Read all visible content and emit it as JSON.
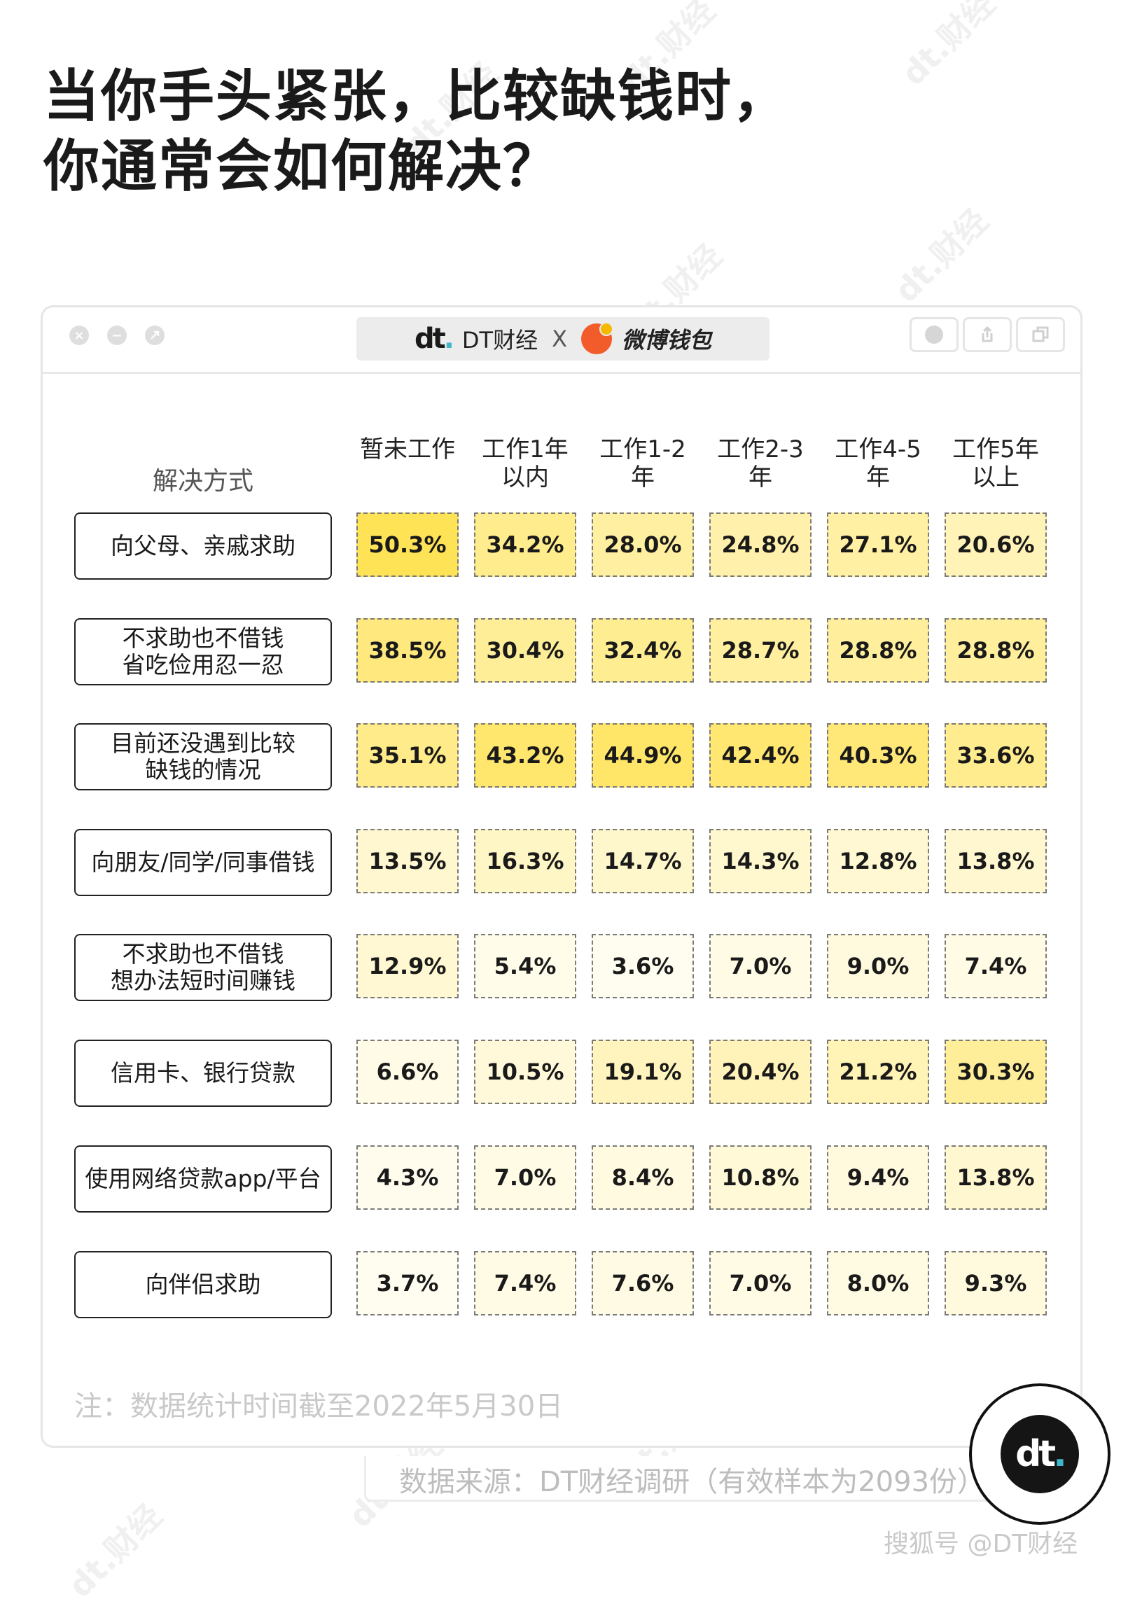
{
  "watermark": "dt.财经",
  "title_lines": [
    "当你手头紧张，比较缺钱时，",
    "你通常会如何解决？"
  ],
  "window": {
    "brand_dt": "DT财经",
    "brand_x": "X",
    "brand_weibo": "微博钱包"
  },
  "logo_text": "dt",
  "chart_data": {
    "type": "table",
    "title": "当你手头紧张，比较缺钱时，你通常会如何解决？",
    "row_header": "解决方式",
    "columns": [
      "暂未工作",
      "工作1年\n以内",
      "工作1-2年",
      "工作2-3年",
      "工作4-5年",
      "工作5年\n以上"
    ],
    "rows": [
      {
        "label": "向父母、亲戚求助",
        "values": [
          50.3,
          34.2,
          28.0,
          24.8,
          27.1,
          20.6
        ],
        "display": [
          "50.3%",
          "34.2%",
          "28.0%",
          "24.8%",
          "27.1%",
          "20.6%"
        ]
      },
      {
        "label": "不求助也不借钱\n省吃俭用忍一忍",
        "values": [
          38.5,
          30.4,
          32.4,
          28.7,
          28.8,
          28.8
        ],
        "display": [
          "38.5%",
          "30.4%",
          "32.4%",
          "28.7%",
          "28.8%",
          "28.8%"
        ]
      },
      {
        "label": "目前还没遇到比较\n缺钱的情况",
        "values": [
          35.1,
          43.2,
          44.9,
          42.4,
          40.3,
          33.6
        ],
        "display": [
          "35.1%",
          "43.2%",
          "44.9%",
          "42.4%",
          "40.3%",
          "33.6%"
        ]
      },
      {
        "label": "向朋友/同学/同事借钱",
        "values": [
          13.5,
          16.3,
          14.7,
          14.3,
          12.8,
          13.8
        ],
        "display": [
          "13.5%",
          "16.3%",
          "14.7%",
          "14.3%",
          "12.8%",
          "13.8%"
        ]
      },
      {
        "label": "不求助也不借钱\n想办法短时间赚钱",
        "values": [
          12.9,
          5.4,
          3.6,
          7.0,
          9.0,
          7.4
        ],
        "display": [
          "12.9%",
          "5.4%",
          "3.6%",
          "7.0%",
          "9.0%",
          "7.4%"
        ]
      },
      {
        "label": "信用卡、银行贷款",
        "values": [
          6.6,
          10.5,
          19.1,
          20.4,
          21.2,
          30.3
        ],
        "display": [
          "6.6%",
          "10.5%",
          "19.1%",
          "20.4%",
          "21.2%",
          "30.3%"
        ]
      },
      {
        "label": "使用网络贷款app/平台",
        "values": [
          4.3,
          7.0,
          8.4,
          10.8,
          9.4,
          13.8
        ],
        "display": [
          "4.3%",
          "7.0%",
          "8.4%",
          "10.8%",
          "9.4%",
          "13.8%"
        ]
      },
      {
        "label": "向伴侣求助",
        "values": [
          3.7,
          7.4,
          7.6,
          7.0,
          8.0,
          9.3
        ],
        "display": [
          "3.7%",
          "7.4%",
          "7.6%",
          "7.0%",
          "8.0%",
          "9.3%"
        ]
      }
    ],
    "color_scale": {
      "low": "#fffdf2",
      "high": "#ffe357"
    },
    "unit": "%"
  },
  "note": "注：数据统计时间截至2022年5月30日",
  "source": "数据来源：DT财经调研（有效样本为2093份）",
  "platform": "搜狐号 @DT财经"
}
